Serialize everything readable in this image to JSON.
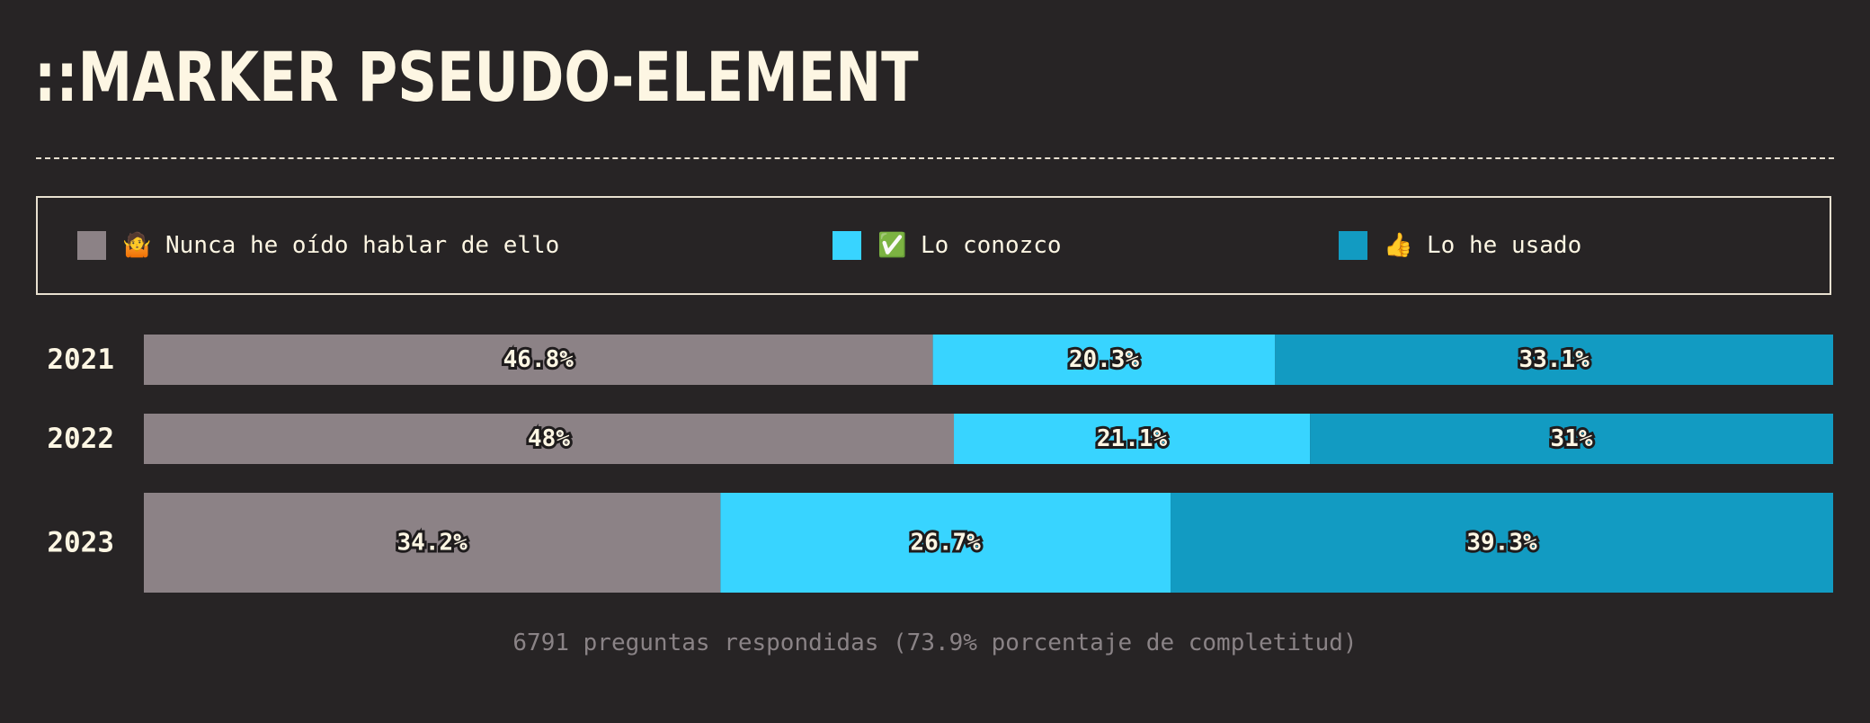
{
  "title": "::MARKER PSEUDO-ELEMENT",
  "legend": {
    "items": [
      {
        "icon": "🤷",
        "label": "Nunca he oído hablar de ello",
        "color": "#8c8286",
        "icon_name": "shrug-icon"
      },
      {
        "icon": "✅",
        "label": "Lo conozco",
        "color": "#38d4ff",
        "icon_name": "check-mark-icon"
      },
      {
        "icon": "👍",
        "label": "Lo he usado",
        "color": "#129bc2",
        "icon_name": "thumbs-up-icon"
      }
    ]
  },
  "chart_data": {
    "type": "bar",
    "orientation": "horizontal",
    "stacked": true,
    "categories": [
      "2021",
      "2022",
      "2023"
    ],
    "series": [
      {
        "name": "Nunca he oído hablar de ello",
        "values": [
          46.8,
          48,
          34.2
        ],
        "labels": [
          "46.8%",
          "48%",
          "34.2%"
        ],
        "color": "#8c8286"
      },
      {
        "name": "Lo conozco",
        "values": [
          20.3,
          21.1,
          26.7
        ],
        "labels": [
          "20.3%",
          "21.1%",
          "26.7%"
        ],
        "color": "#38d4ff"
      },
      {
        "name": "Lo he usado",
        "values": [
          33.1,
          31,
          39.3
        ],
        "labels": [
          "33.1%",
          "31%",
          "39.3%"
        ],
        "color": "#129bc2"
      }
    ],
    "xlim": [
      0,
      100
    ],
    "grid": false,
    "legend_position": "top"
  },
  "footer": "6791 preguntas respondidas (73.9% porcentaje de completitud)"
}
